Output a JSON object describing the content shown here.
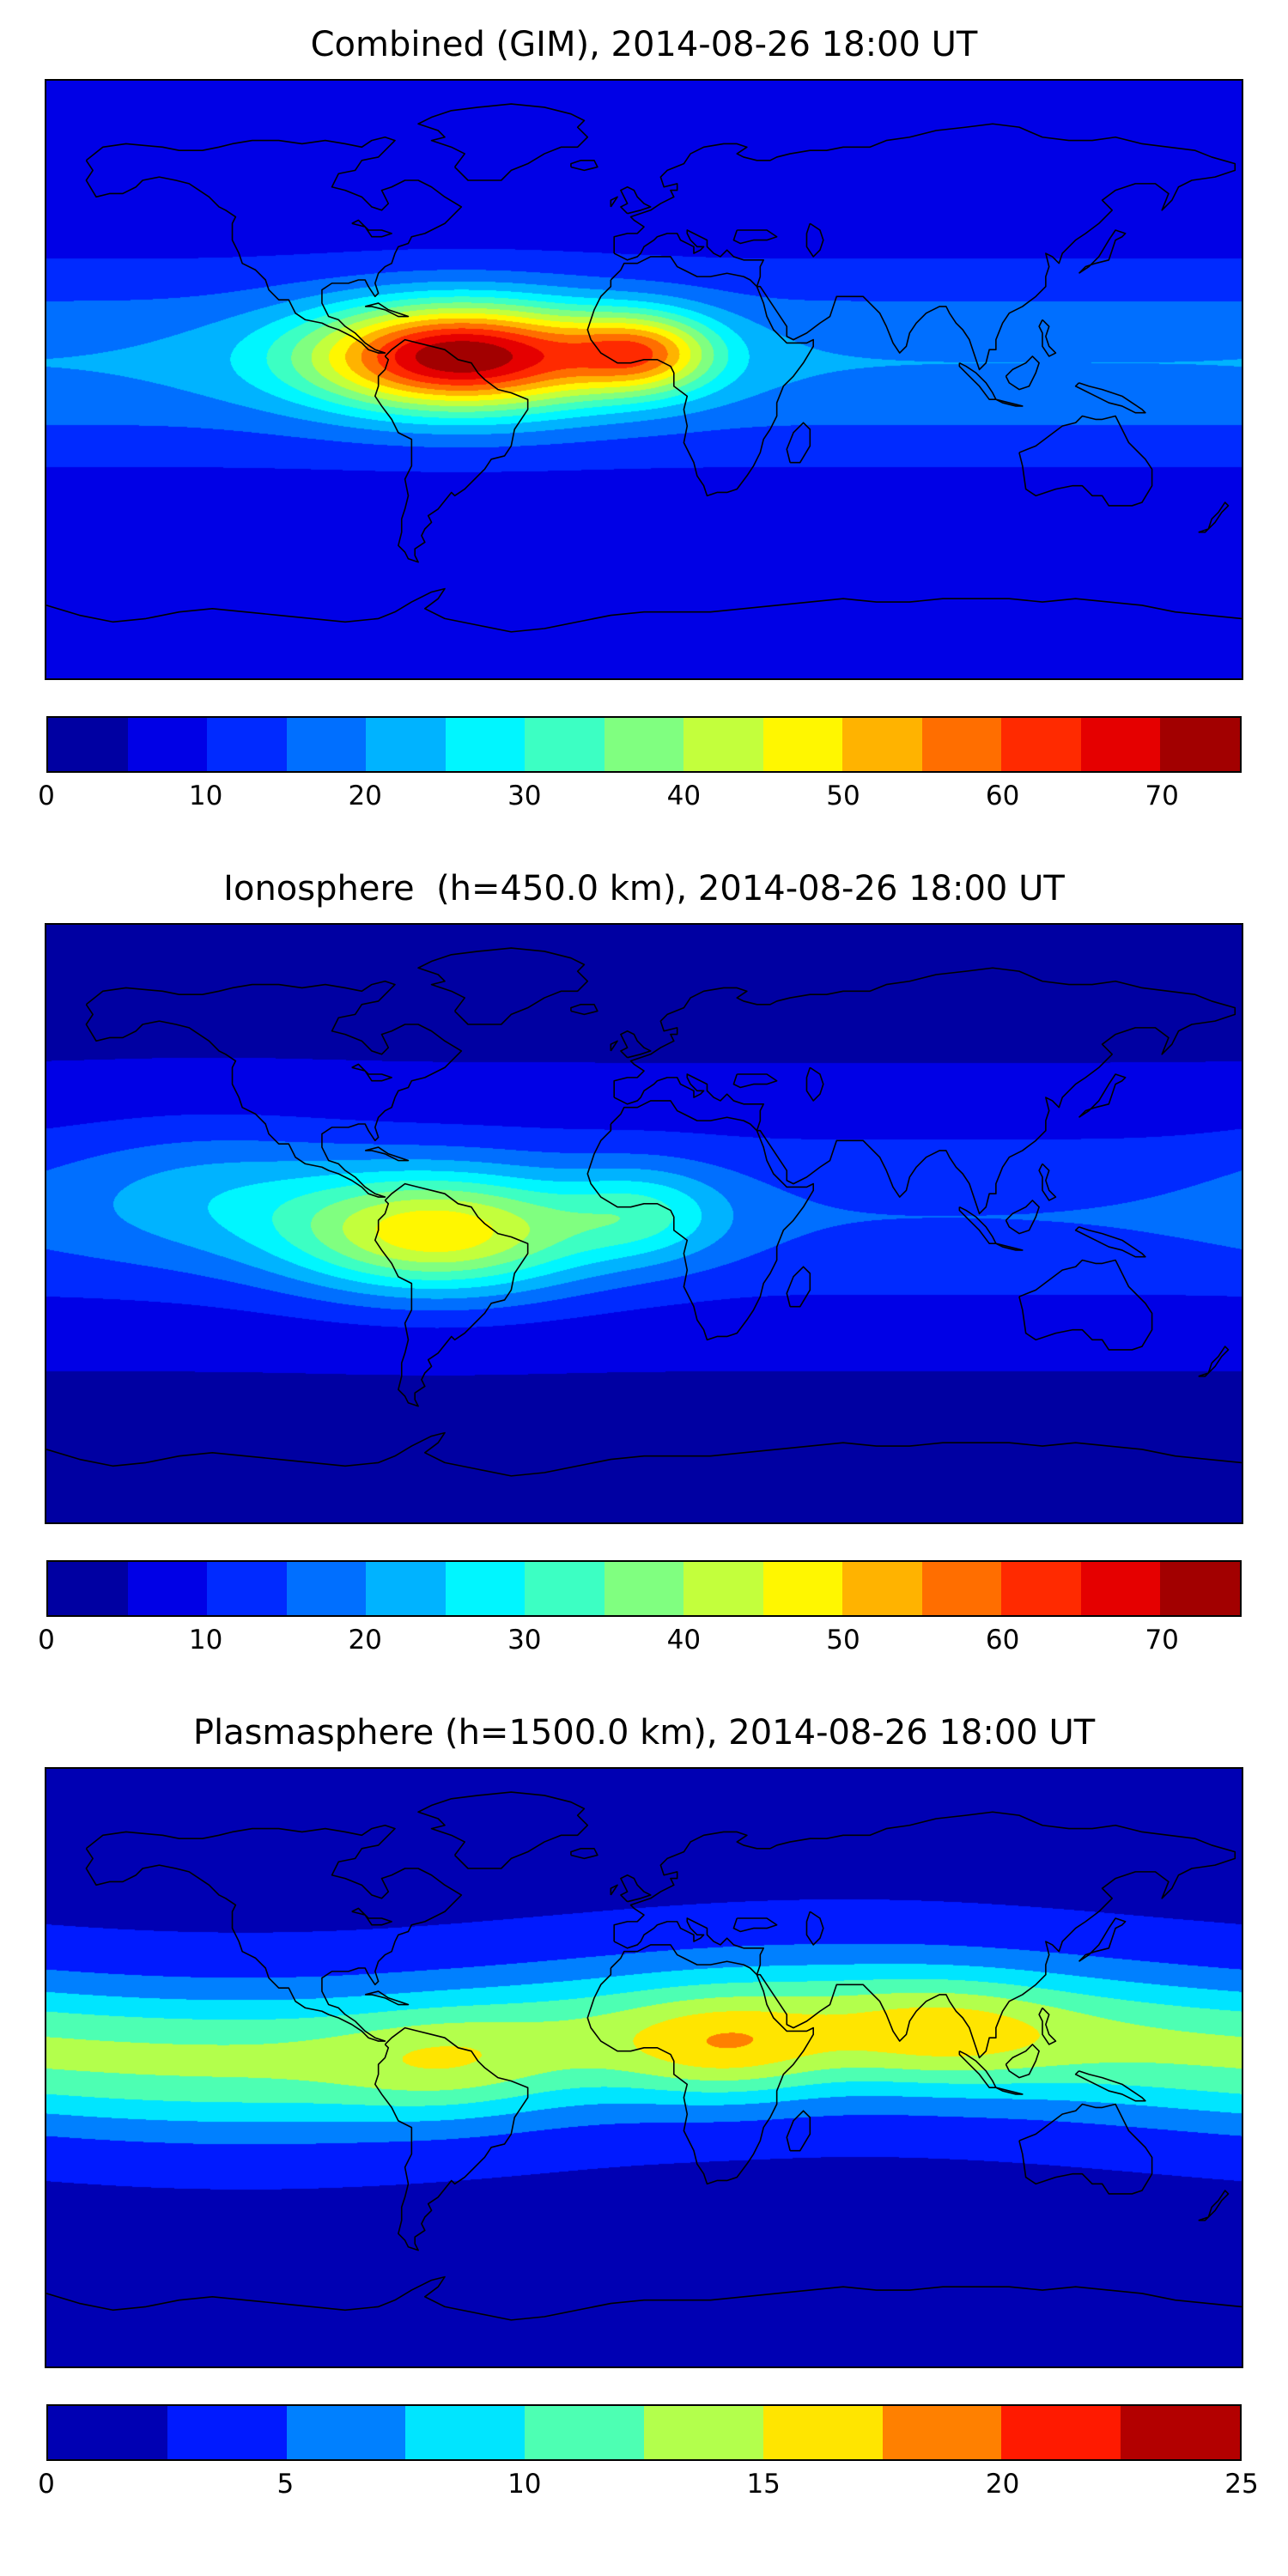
{
  "page": {
    "background": "#ffffff"
  },
  "chart_data": [
    {
      "type": "heatmap",
      "title": "Combined (GIM), 2014-08-26 18:00 UT",
      "layer": "Combined (GIM)",
      "date": "2014-08-26",
      "time_ut": "18:00 UT",
      "projection": "equirectangular",
      "lon_range": [
        -180,
        180
      ],
      "lat_range": [
        -90,
        90
      ],
      "colormap": "jet",
      "colorbar": {
        "min": 0,
        "max": 75,
        "n_levels": 15,
        "ticks": [
          0,
          10,
          20,
          30,
          40,
          50,
          60,
          70
        ]
      },
      "field_model": {
        "base": 6,
        "band": {
          "amp": 14,
          "lat0": 5,
          "sigma": 28,
          "tilt": 0,
          "tilt_lon0": 0
        },
        "blobs": [
          {
            "lon": -55,
            "lat": 7,
            "amp": 55,
            "slon": 45,
            "slat": 16
          },
          {
            "lon": 0,
            "lat": 8,
            "amp": 30,
            "slon": 22,
            "slat": 12
          }
        ],
        "peak_value": 75,
        "peak_location": {
          "lon": -55,
          "lat": 7
        }
      }
    },
    {
      "type": "heatmap",
      "title": "Ionosphere  (h=450.0 km), 2014-08-26 18:00 UT",
      "layer": "Ionosphere",
      "height_km": 450.0,
      "date": "2014-08-26",
      "time_ut": "18:00 UT",
      "projection": "equirectangular",
      "lon_range": [
        -180,
        180
      ],
      "lat_range": [
        -90,
        90
      ],
      "colormap": "jet",
      "colorbar": {
        "min": 0,
        "max": 75,
        "n_levels": 15,
        "ticks": [
          0,
          10,
          20,
          30,
          40,
          50,
          60,
          70
        ]
      },
      "field_model": {
        "base": 4,
        "band": {
          "amp": 11,
          "lat0": 2,
          "sigma": 30,
          "tilt": 0,
          "tilt_lon0": 0
        },
        "blobs": [
          {
            "lon": -62,
            "lat": -3,
            "amp": 34,
            "slon": 45,
            "slat": 18
          },
          {
            "lon": 0,
            "lat": 3,
            "amp": 14,
            "slon": 25,
            "slat": 14
          },
          {
            "lon": -130,
            "lat": 10,
            "amp": 8,
            "slon": 45,
            "slat": 20
          }
        ],
        "peak_value": 49,
        "peak_location": {
          "lon": -62,
          "lat": -3
        }
      }
    },
    {
      "type": "heatmap",
      "title": "Plasmasphere (h=1500.0 km), 2014-08-26 18:00 UT",
      "layer": "Plasmasphere",
      "height_km": 1500.0,
      "date": "2014-08-26",
      "time_ut": "18:00 UT",
      "projection": "equirectangular",
      "lon_range": [
        -180,
        180
      ],
      "lat_range": [
        -90,
        90
      ],
      "colormap": "jet",
      "colorbar": {
        "min": 0,
        "max": 25,
        "n_levels": 10,
        "ticks": [
          0,
          5,
          10,
          15,
          20,
          25
        ]
      },
      "field_model": {
        "base": 2,
        "band": {
          "amp": 11,
          "lat0": 7,
          "sigma": 22,
          "tilt": 5,
          "tilt_lon0": 60
        },
        "blobs": [
          {
            "lon": 25,
            "lat": 5,
            "amp": 5,
            "slon": 30,
            "slat": 15
          },
          {
            "lon": 90,
            "lat": 10,
            "amp": 4,
            "slon": 35,
            "slat": 15
          },
          {
            "lon": -60,
            "lat": 0,
            "amp": 2.5,
            "slon": 30,
            "slat": 15
          }
        ],
        "peak_value": 18,
        "peak_location": {
          "lon": 25,
          "lat": 8
        }
      }
    }
  ]
}
